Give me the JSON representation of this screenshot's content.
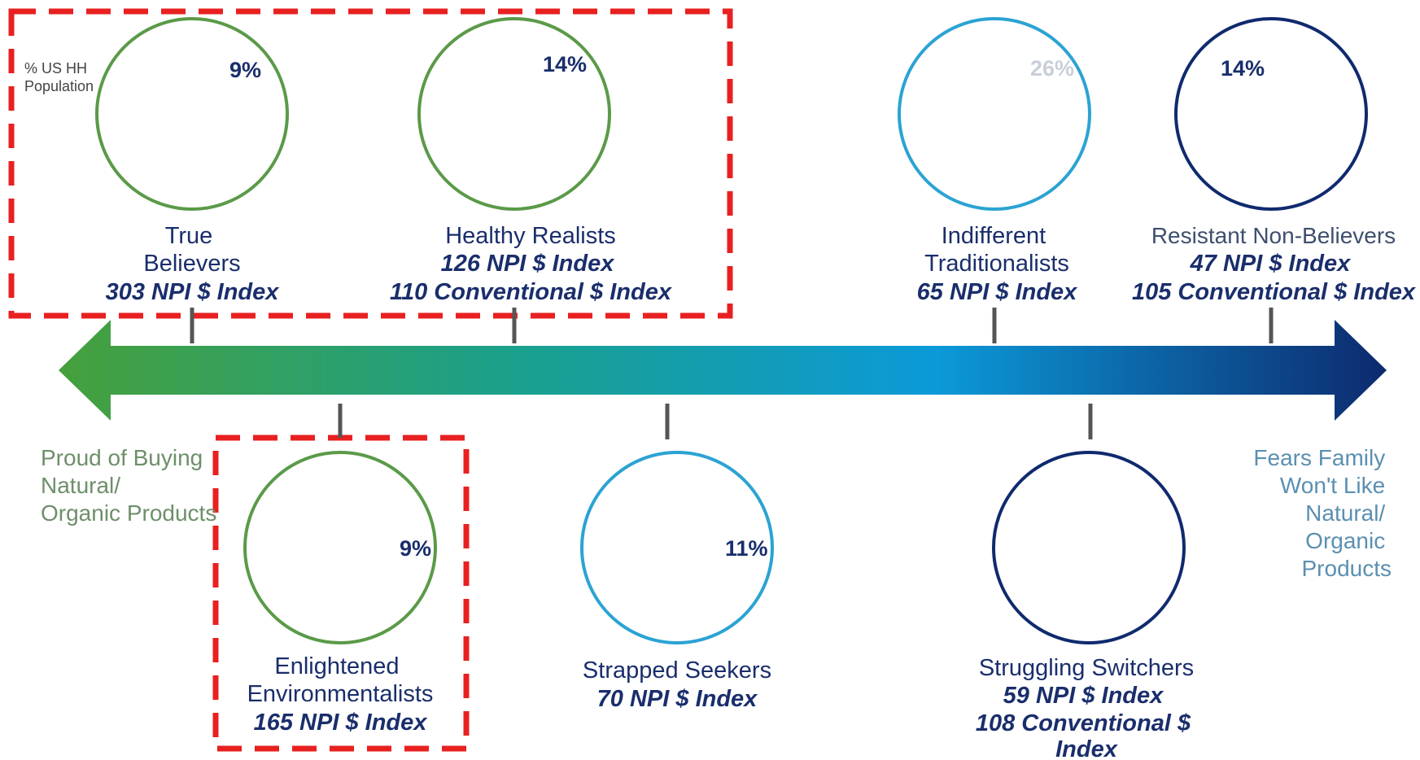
{
  "population_label": [
    "% US HH",
    "Population"
  ],
  "left_label": [
    "Proud of Buying",
    "Natural/",
    "Organic Products"
  ],
  "right_label": [
    "Fears Family",
    "Won't Like",
    "Natural/",
    "Organic",
    "Products"
  ],
  "colors": {
    "green": "#5a9a48",
    "teal": "#1aa0a0",
    "light_blue": "#2ba3d3",
    "navy": "#0f2a6e",
    "highlight": "#e82020"
  },
  "segments": [
    {
      "id": "true-believers",
      "percent": "9%",
      "name": [
        "True",
        "Believers"
      ],
      "indexes": [
        "303 NPI $ Index"
      ]
    },
    {
      "id": "healthy-realists",
      "percent": "14%",
      "name": [
        "Healthy Realists"
      ],
      "indexes": [
        "126 NPI $ Index",
        "110 Conventional $ Index"
      ]
    },
    {
      "id": "indifferent-traditionalists",
      "percent": "26%",
      "name": [
        "Indifferent",
        "Traditionalists"
      ],
      "indexes": [
        "65 NPI $ Index"
      ]
    },
    {
      "id": "resistant-non-believers",
      "percent": "14%",
      "name": [
        "Resistant Non-Believers"
      ],
      "indexes": [
        "47 NPI $ Index",
        "105 Conventional $ Index"
      ]
    },
    {
      "id": "enlightened-environmentalists",
      "percent": "9%",
      "name": [
        "Enlightened",
        "Environmentalists"
      ],
      "indexes": [
        "165 NPI $ Index"
      ]
    },
    {
      "id": "strapped-seekers",
      "percent": "11%",
      "name": [
        "Strapped Seekers"
      ],
      "indexes": [
        "70 NPI $ Index"
      ]
    },
    {
      "id": "struggling-switchers",
      "percent": "",
      "name": [
        "Struggling Switchers"
      ],
      "indexes": [
        "59 NPI $ Index",
        "108 Conventional $",
        "Index"
      ]
    }
  ]
}
